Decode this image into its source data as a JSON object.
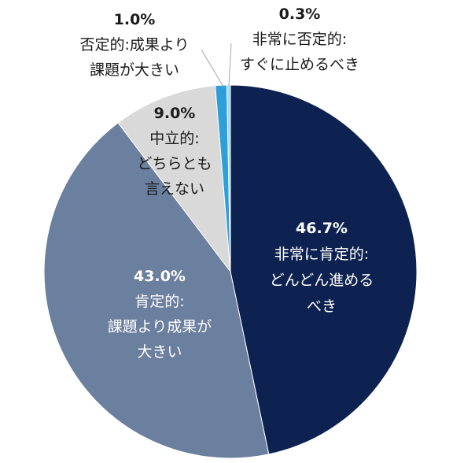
{
  "chart_data": {
    "type": "pie",
    "start_angle_deg": 0,
    "direction": "clockwise",
    "slices": [
      {
        "pct_label": "46.7%",
        "value": 46.7,
        "label_lines": [
          "非常に肯定的:",
          "どんどん進める",
          "べき"
        ],
        "color": "#0d2250",
        "text_color": "#ffffff"
      },
      {
        "pct_label": "43.0%",
        "value": 43.0,
        "label_lines": [
          "肯定的:",
          "課題より成果が",
          "大きい"
        ],
        "color": "#6b7f9e",
        "text_color": "#ffffff"
      },
      {
        "pct_label": "9.0%",
        "value": 9.0,
        "label_lines": [
          "中立的:",
          "どちらとも",
          "言えない"
        ],
        "color": "#d9d9d9",
        "text_color": "#1a1a1a"
      },
      {
        "pct_label": "1.0%",
        "value": 1.0,
        "label_lines": [
          "否定的:成果より",
          "課題が大きい"
        ],
        "color": "#2e9fd9",
        "text_color": "#1a1a1a"
      },
      {
        "pct_label": "0.3%",
        "value": 0.3,
        "label_lines": [
          "非常に否定的:",
          "すぐに止めるべき"
        ],
        "color": "#9fd8f2",
        "text_color": "#1a1a1a"
      }
    ]
  }
}
